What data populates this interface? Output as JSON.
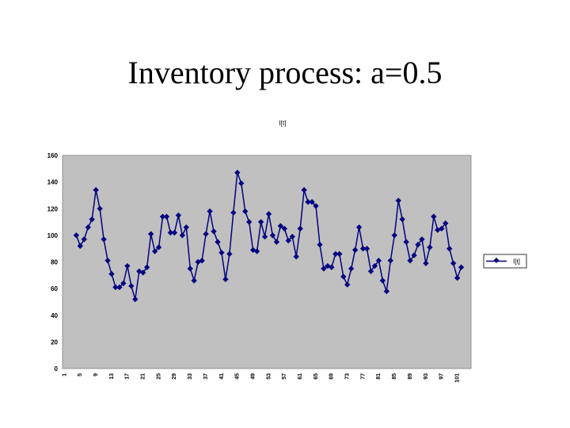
{
  "slide": {
    "title": "Inventory process: a=0.5"
  },
  "chart_data": {
    "type": "line",
    "title": "I[t]",
    "xlabel": "",
    "ylabel": "",
    "ylim": [
      0,
      160
    ],
    "yticks": [
      0,
      20,
      40,
      60,
      80,
      100,
      120,
      140,
      160
    ],
    "xlim": [
      1,
      104
    ],
    "xticks": [
      1,
      5,
      9,
      13,
      17,
      21,
      25,
      29,
      33,
      37,
      41,
      45,
      49,
      53,
      57,
      61,
      65,
      69,
      73,
      77,
      81,
      85,
      89,
      93,
      97,
      101
    ],
    "grid": "none",
    "plot_background": "#c0c0c0",
    "line_color": "#000080",
    "legend": {
      "position": "right",
      "entries": [
        "I[t]"
      ]
    },
    "series": [
      {
        "name": "I[t]",
        "x_start": 4,
        "values": [
          100,
          92,
          97,
          106,
          112,
          134,
          120,
          97,
          81,
          71,
          61,
          61,
          64,
          77,
          62,
          52,
          73,
          72,
          76,
          101,
          88,
          91,
          114,
          114,
          102,
          102,
          115,
          100,
          106,
          75,
          66,
          80,
          81,
          101,
          118,
          103,
          95,
          87,
          67,
          86,
          117,
          147,
          139,
          118,
          110,
          89,
          88,
          110,
          99,
          116,
          100,
          95,
          107,
          105,
          96,
          99,
          84,
          105,
          134,
          125,
          125,
          122,
          93,
          75,
          77,
          76,
          86,
          86,
          69,
          63,
          75,
          89,
          106,
          90,
          90,
          73,
          77,
          81,
          66,
          58,
          81,
          100,
          126,
          112,
          95,
          81,
          85,
          93,
          97,
          79,
          91,
          114,
          104,
          105,
          109,
          90,
          79,
          68,
          76
        ]
      }
    ]
  }
}
